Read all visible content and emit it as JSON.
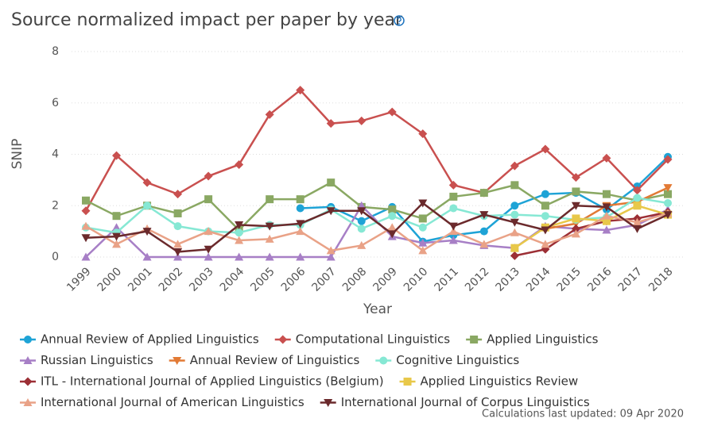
{
  "chart_data": {
    "type": "line",
    "title": "Source normalized impact per paper by year",
    "x_label": "Year",
    "y_label": "SNIP",
    "footnote": "Calculations last updated: 09 Apr 2020",
    "categories": [
      "1999",
      "2000",
      "2001",
      "2002",
      "2003",
      "2004",
      "2005",
      "2006",
      "2007",
      "2008",
      "2009",
      "2010",
      "2011",
      "2012",
      "2013",
      "2014",
      "2015",
      "2016",
      "2017",
      "2018"
    ],
    "ylim": [
      0,
      8
    ],
    "yticks": [
      0,
      2,
      4,
      6,
      8
    ],
    "grid": true,
    "series": [
      {
        "name": "Annual Review of Applied Linguistics",
        "color": "#1ea3d6",
        "marker": "circle",
        "values": [
          null,
          null,
          null,
          null,
          null,
          null,
          null,
          1.9,
          1.95,
          1.4,
          1.95,
          0.6,
          0.85,
          1.0,
          2.0,
          2.45,
          2.5,
          1.85,
          2.75,
          3.9
        ]
      },
      {
        "name": "Computational Linguistics",
        "color": "#c9504f",
        "marker": "diamond",
        "values": [
          1.8,
          3.95,
          2.9,
          2.45,
          3.15,
          3.6,
          5.55,
          6.5,
          5.2,
          5.3,
          5.65,
          4.8,
          2.8,
          2.5,
          3.55,
          4.2,
          3.1,
          3.85,
          2.6,
          3.8
        ]
      },
      {
        "name": "Applied Linguistics",
        "color": "#8aa863",
        "marker": "square",
        "values": [
          2.2,
          1.6,
          2.0,
          1.7,
          2.25,
          1.05,
          2.25,
          2.25,
          2.9,
          1.95,
          1.85,
          1.5,
          2.35,
          2.5,
          2.8,
          2.0,
          2.55,
          2.45,
          2.2,
          2.45
        ]
      },
      {
        "name": "Russian Linguistics",
        "color": "#a77fc6",
        "marker": "triangle-up",
        "values": [
          0,
          1.15,
          0,
          0,
          0,
          0,
          0,
          0,
          0,
          2.0,
          0.8,
          0.55,
          0.65,
          0.45,
          0.35,
          1.2,
          1.1,
          1.05,
          1.25,
          1.85
        ]
      },
      {
        "name": "Annual Review of Linguistics",
        "color": "#e27a35",
        "marker": "triangle-down",
        "values": [
          null,
          null,
          null,
          null,
          null,
          null,
          null,
          null,
          null,
          null,
          null,
          null,
          null,
          null,
          null,
          1.1,
          1.3,
          2.0,
          2.15,
          2.7
        ]
      },
      {
        "name": "Cognitive Linguistics",
        "color": "#86e8d4",
        "marker": "circle",
        "values": [
          1.15,
          0.95,
          2.0,
          1.2,
          1.0,
          0.95,
          1.25,
          1.25,
          1.85,
          1.1,
          1.6,
          1.15,
          1.9,
          1.6,
          1.65,
          1.6,
          1.45,
          1.55,
          2.3,
          2.1
        ]
      },
      {
        "name": "ITL - International Journal of Applied Linguistics (Belgium)",
        "color": "#9c2f35",
        "marker": "diamond",
        "values": [
          null,
          null,
          null,
          null,
          null,
          null,
          null,
          null,
          null,
          null,
          null,
          null,
          null,
          null,
          0.05,
          0.3,
          1.1,
          1.4,
          1.5,
          1.75
        ]
      },
      {
        "name": "Applied Linguistics Review",
        "color": "#e8c84a",
        "marker": "square",
        "values": [
          null,
          null,
          null,
          null,
          null,
          null,
          null,
          null,
          null,
          null,
          null,
          null,
          null,
          null,
          0.35,
          1.15,
          1.5,
          1.4,
          2.0,
          1.65
        ]
      },
      {
        "name": "International Journal of American Linguistics",
        "color": "#e9a287",
        "marker": "triangle-up",
        "values": [
          1.2,
          0.5,
          1.1,
          0.5,
          1.0,
          0.65,
          0.7,
          1.0,
          0.25,
          0.45,
          1.15,
          0.25,
          1.0,
          0.5,
          0.95,
          0.5,
          0.9,
          1.6,
          1.35,
          1.7
        ]
      },
      {
        "name": "International Journal of Corpus Linguistics",
        "color": "#6b2a2c",
        "marker": "triangle-down",
        "values": [
          0.75,
          0.8,
          1.0,
          0.2,
          0.3,
          1.25,
          1.2,
          1.3,
          1.8,
          1.8,
          0.9,
          2.1,
          1.2,
          1.65,
          1.35,
          1.05,
          2.0,
          1.95,
          1.1,
          1.65
        ]
      }
    ]
  }
}
